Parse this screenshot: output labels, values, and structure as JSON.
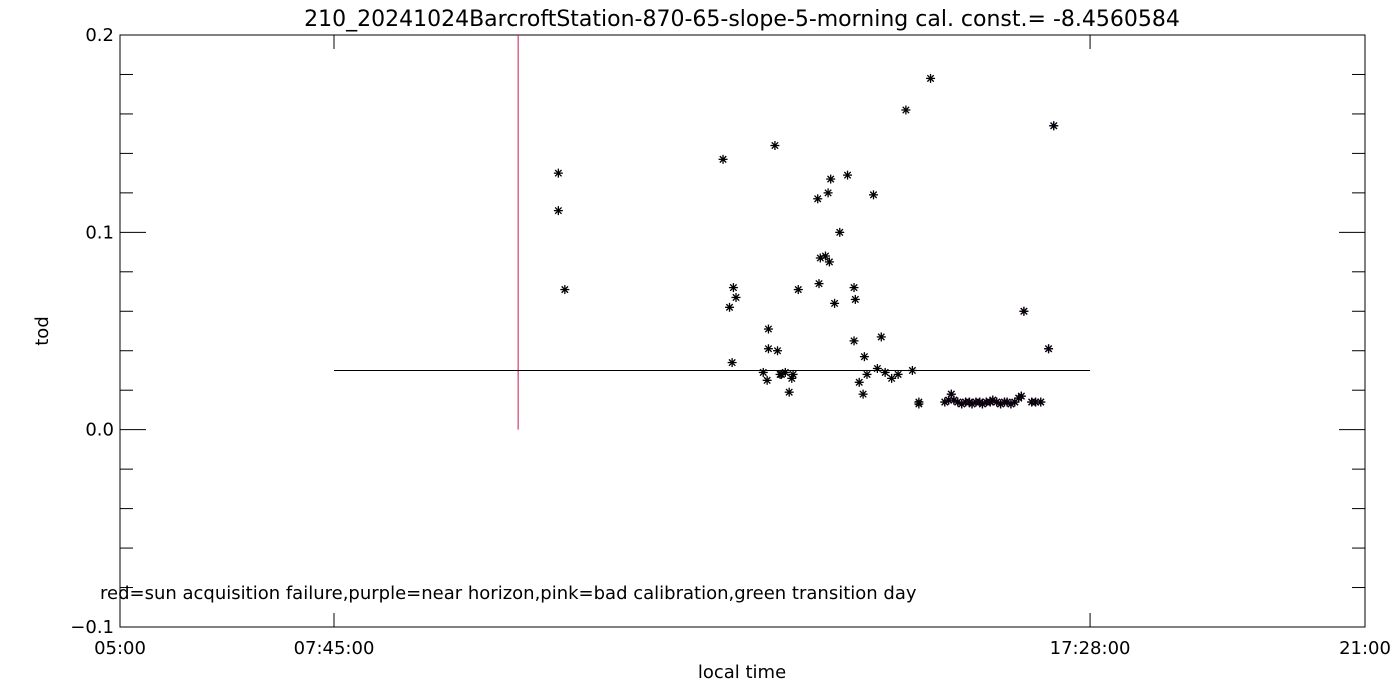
{
  "chart_data": {
    "type": "scatter",
    "title": "210_20241024BarcroftStation-870-65-slope-5-morning cal. const.= -8.4560584",
    "xlabel": "local time",
    "ylabel": "tod",
    "xlim": [
      "05:00",
      "21:00"
    ],
    "ylim": [
      -0.1,
      0.2
    ],
    "xticks": [
      {
        "t": "05:00",
        "label": "05:00"
      },
      {
        "t": "07:45",
        "label": "07:45:00"
      },
      {
        "t": "17:28",
        "label": "17:28:00"
      },
      {
        "t": "21:00",
        "label": "21:00"
      }
    ],
    "yticks": [
      {
        "v": -0.1,
        "label": "−0.1"
      },
      {
        "v": 0.0,
        "label": "0.0"
      },
      {
        "v": 0.1,
        "label": "0.1"
      },
      {
        "v": 0.2,
        "label": "0.2"
      }
    ],
    "legend_text": "red=sun acquisition failure,purple=near horizon,pink=bad calibration,green transition day",
    "reference_line": {
      "y": 0.03,
      "x_start": "07:45",
      "x_end": "17:28",
      "color": "#000000"
    },
    "marker_line": {
      "x": "10:07",
      "y_start": 0.0,
      "y_end": 0.2,
      "color": "#cc1a4a"
    },
    "colors": {
      "normal": "#000000",
      "near_horizon": "#7a1fa0",
      "marker": "#cc1a4a"
    },
    "series": [
      {
        "category": "normal",
        "points": [
          [
            "10:38",
            0.13
          ],
          [
            "10:38",
            0.111
          ],
          [
            "10:43",
            0.071
          ],
          [
            "12:45",
            0.137
          ],
          [
            "12:50",
            0.062
          ],
          [
            "12:53",
            0.072
          ],
          [
            "12:55",
            0.067
          ],
          [
            "12:52",
            0.034
          ],
          [
            "13:16",
            0.029
          ],
          [
            "13:19",
            0.025
          ],
          [
            "13:20",
            0.051
          ],
          [
            "13:20",
            0.041
          ],
          [
            "13:25",
            0.144
          ],
          [
            "13:27",
            0.04
          ],
          [
            "13:29",
            0.028
          ],
          [
            "13:30",
            0.028
          ],
          [
            "13:33",
            0.029
          ],
          [
            "13:36",
            0.019
          ],
          [
            "13:38",
            0.026
          ],
          [
            "13:39",
            0.028
          ],
          [
            "13:43",
            0.071
          ],
          [
            "13:58",
            0.117
          ],
          [
            "14:00",
            0.087
          ],
          [
            "13:59",
            0.074
          ],
          [
            "14:04",
            0.088
          ],
          [
            "14:06",
            0.12
          ],
          [
            "14:07",
            0.085
          ],
          [
            "14:08",
            0.127
          ],
          [
            "14:11",
            0.064
          ],
          [
            "14:15",
            0.1
          ],
          [
            "14:21",
            0.129
          ],
          [
            "14:26",
            0.072
          ],
          [
            "14:27",
            0.066
          ],
          [
            "14:26",
            0.045
          ],
          [
            "14:30",
            0.024
          ],
          [
            "14:33",
            0.018
          ],
          [
            "14:34",
            0.037
          ],
          [
            "14:36",
            0.028
          ],
          [
            "14:41",
            0.119
          ],
          [
            "14:44",
            0.031
          ],
          [
            "14:47",
            0.047
          ],
          [
            "14:50",
            0.029
          ],
          [
            "14:55",
            0.026
          ],
          [
            "15:00",
            0.028
          ],
          [
            "15:06",
            0.162
          ],
          [
            "15:11",
            0.03
          ],
          [
            "15:16",
            0.014
          ],
          [
            "15:16",
            0.013
          ],
          [
            "15:25",
            0.178
          ]
        ]
      },
      {
        "category": "near_horizon",
        "points": [
          [
            "15:36",
            0.014
          ],
          [
            "15:39",
            0.015
          ],
          [
            "15:41",
            0.018
          ],
          [
            "15:43",
            0.015
          ],
          [
            "15:46",
            0.014
          ],
          [
            "15:49",
            0.013
          ],
          [
            "15:52",
            0.014
          ],
          [
            "15:55",
            0.014
          ],
          [
            "15:57",
            0.013
          ],
          [
            "16:00",
            0.014
          ],
          [
            "16:03",
            0.014
          ],
          [
            "16:05",
            0.013
          ],
          [
            "16:08",
            0.014
          ],
          [
            "16:11",
            0.014
          ],
          [
            "16:13",
            0.015
          ],
          [
            "16:16",
            0.014
          ],
          [
            "16:19",
            0.013
          ],
          [
            "16:22",
            0.014
          ],
          [
            "16:24",
            0.014
          ],
          [
            "16:27",
            0.013
          ],
          [
            "16:30",
            0.014
          ],
          [
            "16:33",
            0.016
          ],
          [
            "16:35",
            0.017
          ],
          [
            "16:37",
            0.06
          ],
          [
            "16:43",
            0.014
          ],
          [
            "16:46",
            0.014
          ],
          [
            "16:50",
            0.014
          ],
          [
            "16:56",
            0.041
          ],
          [
            "17:00",
            0.154
          ]
        ]
      }
    ]
  }
}
